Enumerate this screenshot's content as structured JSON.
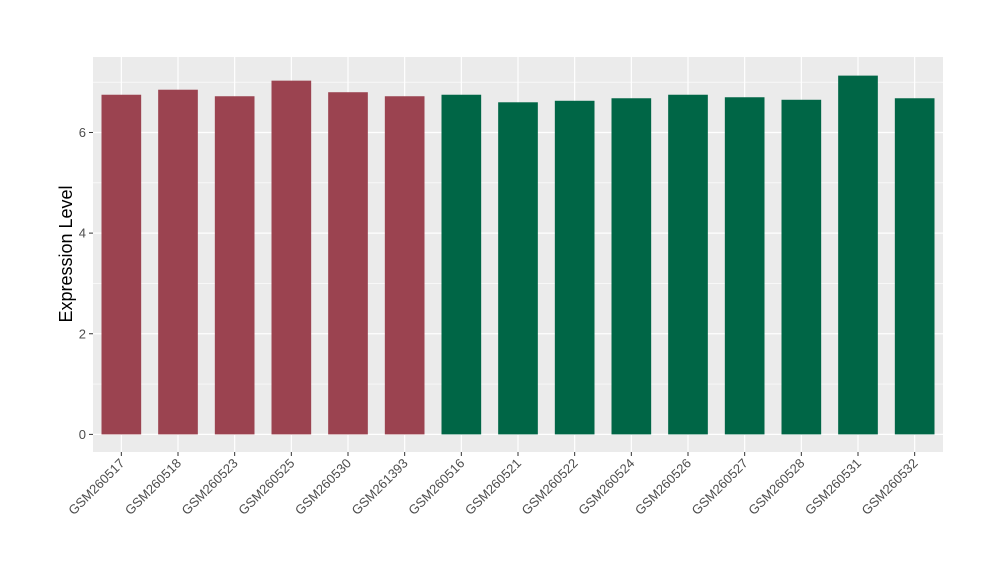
{
  "chart_data": {
    "type": "bar",
    "ylabel": "Expression Level",
    "xlabel": "",
    "ylim": [
      -0.35,
      7.5
    ],
    "yticks": [
      0,
      2,
      4,
      6
    ],
    "grid": true,
    "legend": "none",
    "categories": [
      "GSM260517",
      "GSM260518",
      "GSM260523",
      "GSM260525",
      "GSM260530",
      "GSM261393",
      "GSM260516",
      "GSM260521",
      "GSM260522",
      "GSM260524",
      "GSM260526",
      "GSM260527",
      "GSM260528",
      "GSM260531",
      "GSM260532"
    ],
    "values": [
      6.75,
      6.85,
      6.72,
      7.03,
      6.8,
      6.72,
      6.75,
      6.6,
      6.63,
      6.68,
      6.75,
      6.7,
      6.65,
      7.13,
      6.68
    ],
    "groups": [
      "a",
      "a",
      "a",
      "a",
      "a",
      "a",
      "b",
      "b",
      "b",
      "b",
      "b",
      "b",
      "b",
      "b",
      "b"
    ],
    "colors": {
      "a": "#9b4350",
      "b": "#006646",
      "panel": "#ebebeb",
      "grid": "#ffffff"
    }
  }
}
